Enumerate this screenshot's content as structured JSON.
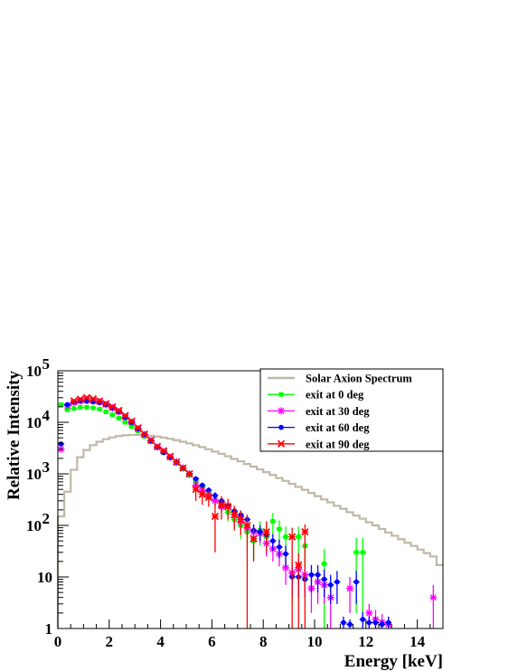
{
  "chart_data": {
    "type": "line",
    "title": "",
    "xlabel": "Energy [keV]",
    "ylabel": "Relative Intensity",
    "xlim": [
      0,
      15
    ],
    "ylim": [
      1,
      100000
    ],
    "y_scale": "log",
    "x_ticks": [
      "0",
      "2",
      "4",
      "6",
      "8",
      "10",
      "12",
      "14"
    ],
    "y_ticks": [
      {
        "value": 1,
        "label": "1"
      },
      {
        "value": 10,
        "label": "10"
      },
      {
        "value": 100,
        "label": "10",
        "exp": "2"
      },
      {
        "value": 1000,
        "label": "10",
        "exp": "3"
      },
      {
        "value": 10000,
        "label": "10",
        "exp": "4"
      },
      {
        "value": 100000,
        "label": "10",
        "exp": "5"
      }
    ],
    "grid": false,
    "legend_position": "top-right",
    "series": [
      {
        "name": "Solar Axion Spectrum",
        "color": "#c0b8a8",
        "style": "step",
        "bin_width": 0.25,
        "x": [
          0,
          0.25,
          0.5,
          0.75,
          1.0,
          1.25,
          1.5,
          1.75,
          2.0,
          2.25,
          2.5,
          2.75,
          3.0,
          3.25,
          3.5,
          3.75,
          4.0,
          4.25,
          4.5,
          4.75,
          5.0,
          5.25,
          5.5,
          5.75,
          6.0,
          6.25,
          6.5,
          6.75,
          7.0,
          7.25,
          7.5,
          7.75,
          8.0,
          8.25,
          8.5,
          8.75,
          9.0,
          9.25,
          9.5,
          9.75,
          10.0,
          10.25,
          10.5,
          10.75,
          11.0,
          11.25,
          11.5,
          11.75,
          12.0,
          12.25,
          12.5,
          12.75,
          13.0,
          13.25,
          13.5,
          13.75,
          14.0,
          14.25,
          14.5,
          14.75
        ],
        "values": [
          150,
          450,
          1200,
          2100,
          2900,
          3600,
          4200,
          4700,
          5100,
          5400,
          5600,
          5700,
          5700,
          5650,
          5500,
          5300,
          5050,
          4800,
          4500,
          4200,
          3900,
          3600,
          3300,
          3000,
          2700,
          2450,
          2200,
          1950,
          1750,
          1550,
          1380,
          1220,
          1080,
          950,
          830,
          730,
          640,
          560,
          490,
          425,
          370,
          320,
          280,
          240,
          210,
          180,
          155,
          135,
          115,
          100,
          85,
          73,
          63,
          54,
          46,
          40,
          34,
          29,
          25,
          17
        ]
      },
      {
        "name": "exit at 0 deg",
        "color": "#00ff00",
        "marker": "square",
        "x": [
          0.125,
          0.375,
          0.625,
          0.875,
          1.125,
          1.375,
          1.625,
          1.875,
          2.125,
          2.375,
          2.625,
          2.875,
          3.125,
          3.375,
          3.625,
          3.875,
          4.125,
          4.375,
          4.625,
          4.875,
          5.125,
          5.375,
          5.625,
          5.875,
          6.125,
          6.375,
          6.625,
          6.875,
          7.125,
          7.375,
          7.625,
          7.875,
          8.125,
          8.375,
          8.625,
          8.875,
          9.125,
          9.375,
          9.625,
          10.375,
          11.625,
          11.875
        ],
        "y": [
          22000,
          17500,
          18500,
          19500,
          19500,
          19000,
          18000,
          16000,
          14000,
          12000,
          10000,
          8200,
          6700,
          5300,
          4200,
          3300,
          2600,
          2050,
          1600,
          1250,
          950,
          720,
          560,
          420,
          310,
          240,
          180,
          130,
          100,
          75,
          50,
          80,
          60,
          120,
          85,
          60,
          12,
          60,
          40,
          18,
          30,
          30
        ],
        "y_err_low": [
          1500,
          1000,
          1000,
          1000,
          1000,
          1000,
          1000,
          800,
          700,
          600,
          500,
          400,
          350,
          280,
          230,
          190,
          170,
          150,
          150,
          140,
          130,
          120,
          100,
          90,
          80,
          70,
          60,
          50,
          45,
          35,
          28,
          40,
          35,
          55,
          40,
          35,
          9,
          35,
          25,
          17,
          28,
          28
        ],
        "y_err_high": [
          1500,
          1000,
          1000,
          1000,
          1000,
          1000,
          1000,
          800,
          700,
          600,
          500,
          400,
          350,
          280,
          230,
          190,
          170,
          150,
          150,
          140,
          130,
          120,
          100,
          90,
          80,
          70,
          60,
          50,
          45,
          35,
          28,
          40,
          35,
          55,
          40,
          35,
          9,
          35,
          25,
          17,
          28,
          28
        ]
      },
      {
        "name": "exit at 30 deg",
        "color": "#ff00ff",
        "marker": "star",
        "x": [
          0.125,
          0.375,
          0.625,
          0.875,
          1.125,
          1.375,
          1.625,
          1.875,
          2.125,
          2.375,
          2.625,
          2.875,
          3.125,
          3.375,
          3.625,
          3.875,
          4.125,
          4.375,
          4.625,
          4.875,
          5.125,
          5.375,
          5.625,
          5.875,
          6.125,
          6.375,
          6.625,
          6.875,
          7.125,
          7.375,
          7.625,
          7.875,
          8.125,
          8.375,
          8.625,
          8.875,
          9.125,
          9.375,
          9.625,
          9.875,
          10.125,
          10.375,
          10.625,
          11.375,
          12.125,
          12.375,
          12.625,
          12.875,
          14.625
        ],
        "y": [
          3000,
          21000,
          24000,
          26000,
          27000,
          26000,
          25000,
          22000,
          19000,
          16000,
          12500,
          10000,
          7500,
          5800,
          4400,
          3300,
          2700,
          2100,
          1700,
          1300,
          1000,
          600,
          480,
          380,
          300,
          230,
          240,
          160,
          120,
          90,
          75,
          70,
          45,
          35,
          28,
          15,
          12,
          14,
          11,
          6,
          8,
          7,
          4,
          6,
          2,
          1.5,
          1.3,
          1.2,
          4
        ],
        "y_err_low": [
          300,
          1000,
          1000,
          1000,
          1000,
          1000,
          1000,
          900,
          800,
          700,
          600,
          500,
          400,
          300,
          250,
          200,
          180,
          150,
          140,
          120,
          110,
          90,
          80,
          70,
          60,
          50,
          55,
          40,
          35,
          30,
          25,
          25,
          20,
          15,
          12,
          8,
          7,
          7,
          6,
          4,
          5,
          4,
          3,
          4,
          1,
          0.8,
          0.6,
          0.5,
          3
        ],
        "y_err_high": [
          300,
          1000,
          1000,
          1000,
          1000,
          1000,
          1000,
          900,
          800,
          700,
          600,
          500,
          400,
          300,
          250,
          200,
          180,
          150,
          140,
          120,
          110,
          90,
          80,
          70,
          60,
          50,
          55,
          40,
          35,
          30,
          25,
          25,
          20,
          15,
          12,
          8,
          7,
          7,
          6,
          4,
          5,
          4,
          3,
          4,
          1,
          0.8,
          0.6,
          0.5,
          3
        ]
      },
      {
        "name": "exit at 60 deg",
        "color": "#0000ff",
        "marker": "circle",
        "x": [
          0.125,
          0.375,
          0.625,
          0.875,
          1.125,
          1.375,
          1.625,
          1.875,
          2.125,
          2.375,
          2.625,
          2.875,
          3.125,
          3.375,
          3.625,
          3.875,
          4.125,
          4.375,
          4.625,
          4.875,
          5.125,
          5.375,
          5.625,
          5.875,
          6.125,
          6.375,
          6.625,
          6.875,
          7.125,
          7.375,
          7.625,
          7.875,
          8.125,
          8.375,
          8.625,
          8.875,
          9.125,
          9.375,
          9.625,
          9.875,
          10.125,
          10.375,
          10.625,
          10.875,
          11.125,
          11.375,
          11.625,
          11.875,
          12.125,
          12.375,
          12.625,
          12.875
        ],
        "y": [
          3800,
          22000,
          25000,
          26000,
          25500,
          25000,
          24000,
          22000,
          19000,
          16000,
          12500,
          10000,
          7500,
          5800,
          4400,
          3300,
          2600,
          2100,
          1700,
          1300,
          1000,
          800,
          600,
          480,
          380,
          300,
          240,
          190,
          160,
          130,
          80,
          75,
          65,
          50,
          38,
          28,
          10,
          10,
          9,
          11,
          11,
          9,
          7,
          8,
          1.3,
          1.2,
          8,
          1.5,
          1.3,
          1.3,
          1.2,
          1.3
        ],
        "y_err_low": [
          300,
          1000,
          1000,
          1000,
          1000,
          1000,
          1000,
          900,
          800,
          700,
          600,
          500,
          400,
          300,
          250,
          200,
          180,
          150,
          140,
          120,
          110,
          100,
          80,
          70,
          60,
          50,
          45,
          40,
          35,
          30,
          25,
          25,
          20,
          18,
          15,
          12,
          6,
          6,
          5,
          6,
          6,
          5,
          4,
          5,
          0.4,
          0.3,
          5,
          0.6,
          0.4,
          0.4,
          0.3,
          0.4
        ],
        "y_err_high": [
          300,
          1000,
          1000,
          1000,
          1000,
          1000,
          1000,
          900,
          800,
          700,
          600,
          500,
          400,
          300,
          250,
          200,
          180,
          150,
          140,
          120,
          110,
          100,
          80,
          70,
          60,
          50,
          45,
          40,
          35,
          30,
          25,
          25,
          20,
          18,
          15,
          12,
          6,
          6,
          5,
          6,
          6,
          5,
          4,
          5,
          0.4,
          0.3,
          5,
          0.6,
          0.4,
          0.4,
          0.3,
          0.4
        ]
      },
      {
        "name": "exit at 90 deg",
        "color": "#ff0000",
        "marker": "cross",
        "x": [
          0.625,
          0.875,
          1.125,
          1.375,
          1.625,
          1.875,
          2.125,
          2.375,
          2.625,
          2.875,
          3.125,
          3.375,
          3.625,
          3.875,
          4.125,
          4.375,
          4.625,
          4.875,
          5.125,
          5.375,
          5.625,
          5.875,
          6.125,
          6.375,
          6.625,
          6.875,
          7.125,
          7.375,
          7.625,
          8.125,
          9.125,
          9.375,
          9.625
        ],
        "y": [
          26000,
          28000,
          30000,
          28500,
          26000,
          23000,
          20000,
          17000,
          13500,
          10500,
          7800,
          5900,
          4500,
          3400,
          2800,
          2200,
          1700,
          1300,
          1000,
          500,
          400,
          350,
          150,
          250,
          230,
          160,
          130,
          100,
          55,
          75,
          60,
          17,
          75
        ],
        "y_err_low": [
          1000,
          1000,
          1000,
          1000,
          1000,
          900,
          800,
          700,
          600,
          500,
          400,
          300,
          250,
          200,
          180,
          150,
          140,
          120,
          110,
          200,
          150,
          120,
          120,
          120,
          100,
          80,
          65,
          99,
          35,
          45,
          59,
          16,
          74
        ],
        "y_err_high": [
          1000,
          1000,
          1000,
          1000,
          1000,
          900,
          800,
          700,
          600,
          500,
          400,
          300,
          250,
          200,
          180,
          150,
          140,
          120,
          110,
          200,
          150,
          120,
          120,
          120,
          100,
          80,
          65,
          60,
          35,
          45,
          30,
          12,
          30
        ]
      }
    ]
  }
}
